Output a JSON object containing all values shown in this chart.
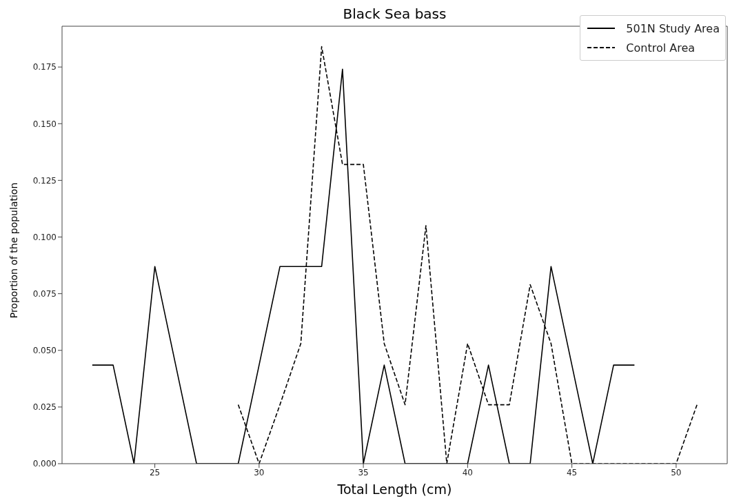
{
  "chart_data": {
    "type": "line",
    "title": "Black Sea bass",
    "xlabel": "Total Length (cm)",
    "ylabel": "Proportion of the population",
    "xlim": [
      20.55,
      52.45
    ],
    "xticks": [
      25,
      30,
      35,
      40,
      45,
      50
    ],
    "ylim": [
      0,
      0.193
    ],
    "yticks": [
      {
        "value": 0,
        "label": "0.000"
      },
      {
        "value": 0.025,
        "label": "0.025"
      },
      {
        "value": 0.05,
        "label": "0.050"
      },
      {
        "value": 0.075,
        "label": "0.075"
      },
      {
        "value": 0.1,
        "label": "0.100"
      },
      {
        "value": 0.125,
        "label": "0.125"
      },
      {
        "value": 0.15,
        "label": "0.150"
      },
      {
        "value": 0.175,
        "label": "0.175"
      }
    ],
    "legend": "top right",
    "marker": "none",
    "series": [
      {
        "name": "501N Study Area",
        "color": "#000000",
        "line_style": "solid",
        "x": [
          22,
          23,
          24,
          25,
          26,
          27,
          28,
          29,
          30,
          31,
          32,
          33,
          34,
          35,
          36,
          37,
          38,
          39,
          40,
          41,
          42,
          43,
          44,
          45,
          46,
          47,
          48
        ],
        "values": [
          0.0435,
          0.0435,
          0,
          0.087,
          0.0435,
          0,
          0,
          0,
          0.0435,
          0.087,
          0.087,
          0.087,
          0.174,
          0,
          0.0435,
          0,
          0,
          0,
          0,
          0.0435,
          0,
          0,
          0.087,
          0.0435,
          0,
          0.0435,
          0.0435
        ]
      },
      {
        "name": "Control Area",
        "color": "#000000",
        "line_style": "dashed",
        "x": [
          29,
          30,
          31,
          32,
          33,
          34,
          35,
          36,
          37,
          38,
          39,
          40,
          41,
          42,
          43,
          44,
          45,
          46,
          47,
          48,
          49,
          50,
          51
        ],
        "values": [
          0.026,
          0,
          0.026,
          0.053,
          0.184,
          0.132,
          0.132,
          0.053,
          0.026,
          0.105,
          0,
          0.053,
          0.026,
          0.026,
          0.079,
          0.053,
          0,
          0,
          0,
          0,
          0,
          0,
          0.026
        ]
      }
    ]
  }
}
